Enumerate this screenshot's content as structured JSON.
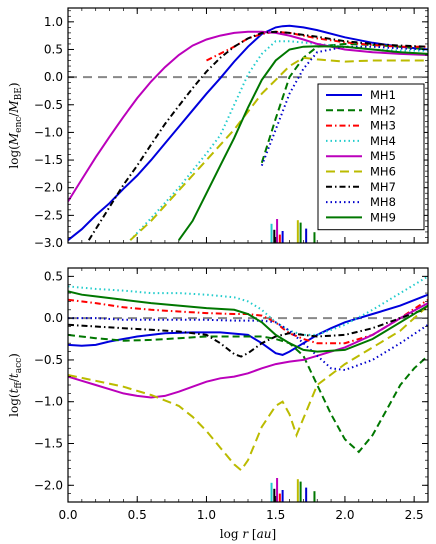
{
  "chart_data": [
    {
      "type": "line",
      "ylabel": "log(M_enc/M_BE)",
      "xlim": [
        0,
        2.6
      ],
      "ylim": [
        -3,
        1.25
      ],
      "yticks": [
        "1.0",
        "0.5",
        "0.0",
        "−0.5",
        "−1.0",
        "−1.5",
        "−2.0",
        "−2.5",
        "−3.0"
      ],
      "reference_line": 0.0,
      "legend_placement": "right",
      "series": [
        {
          "name": "MH1",
          "color": "#0000dd",
          "dash": "",
          "x": [
            0.0,
            0.1,
            0.2,
            0.3,
            0.4,
            0.5,
            0.6,
            0.7,
            0.8,
            0.9,
            1.0,
            1.1,
            1.2,
            1.3,
            1.4,
            1.5,
            1.55,
            1.6,
            1.7,
            1.8,
            2.0,
            2.2,
            2.4,
            2.6
          ],
          "y": [
            -2.95,
            -2.75,
            -2.5,
            -2.28,
            -2.02,
            -1.78,
            -1.5,
            -1.2,
            -0.9,
            -0.6,
            -0.3,
            -0.02,
            0.28,
            0.55,
            0.78,
            0.9,
            0.92,
            0.93,
            0.9,
            0.85,
            0.72,
            0.62,
            0.55,
            0.5
          ]
        },
        {
          "name": "MH2",
          "color": "#007700",
          "dash": "7,4",
          "x": [
            1.4,
            1.5,
            1.6,
            1.7,
            1.8,
            2.0,
            2.2,
            2.4,
            2.6
          ],
          "y": [
            -1.55,
            -0.75,
            0.0,
            0.35,
            0.55,
            0.6,
            0.58,
            0.55,
            0.5
          ]
        },
        {
          "name": "MH3",
          "color": "#ff0000",
          "dash": "6,3,1.5,3",
          "x": [
            1.0,
            1.2,
            1.3,
            1.4,
            1.5,
            1.6,
            1.7,
            1.8,
            2.0,
            2.2,
            2.4,
            2.6
          ],
          "y": [
            0.3,
            0.55,
            0.7,
            0.78,
            0.82,
            0.8,
            0.75,
            0.7,
            0.63,
            0.58,
            0.55,
            0.55
          ]
        },
        {
          "name": "MH4",
          "color": "#22cccc",
          "dash": "1.5,3",
          "x": [
            0.45,
            0.6,
            0.8,
            1.0,
            1.1,
            1.2,
            1.3,
            1.4,
            1.5,
            1.6,
            1.8,
            2.0,
            2.2,
            2.4,
            2.6
          ],
          "y": [
            -2.95,
            -2.55,
            -2.0,
            -1.38,
            -1.05,
            -0.5,
            0.05,
            0.42,
            0.65,
            0.65,
            0.6,
            0.55,
            0.5,
            0.48,
            0.48
          ]
        },
        {
          "name": "MH5",
          "color": "#bb00bb",
          "dash": "",
          "x": [
            0.0,
            0.1,
            0.2,
            0.3,
            0.4,
            0.5,
            0.6,
            0.7,
            0.8,
            0.9,
            1.0,
            1.1,
            1.2,
            1.3,
            1.4,
            1.5,
            1.6,
            1.7,
            1.8,
            2.0,
            2.2,
            2.4,
            2.6
          ],
          "y": [
            -2.25,
            -1.85,
            -1.45,
            -1.08,
            -0.72,
            -0.38,
            -0.08,
            0.18,
            0.4,
            0.57,
            0.68,
            0.75,
            0.8,
            0.82,
            0.82,
            0.8,
            0.75,
            0.68,
            0.6,
            0.5,
            0.45,
            0.42,
            0.4
          ]
        },
        {
          "name": "MH6",
          "color": "#bbbb00",
          "dash": "9,5",
          "x": [
            0.45,
            0.6,
            0.8,
            1.0,
            1.2,
            1.4,
            1.5,
            1.6,
            1.7,
            1.8,
            2.0,
            2.2,
            2.4,
            2.6
          ],
          "y": [
            -2.95,
            -2.6,
            -2.05,
            -1.5,
            -0.95,
            -0.3,
            -0.05,
            0.2,
            0.35,
            0.32,
            0.28,
            0.3,
            0.3,
            0.3
          ]
        },
        {
          "name": "MH7",
          "color": "#000000",
          "dash": "6,3,1.5,3",
          "x": [
            0.15,
            0.3,
            0.4,
            0.5,
            0.6,
            0.7,
            0.8,
            0.9,
            1.0,
            1.1,
            1.2,
            1.3,
            1.4,
            1.5,
            1.6,
            1.8,
            2.0,
            2.2,
            2.4,
            2.6
          ],
          "y": [
            -2.95,
            -2.35,
            -1.95,
            -1.6,
            -1.22,
            -0.85,
            -0.52,
            -0.2,
            0.1,
            0.35,
            0.55,
            0.7,
            0.8,
            0.82,
            0.8,
            0.73,
            0.65,
            0.6,
            0.57,
            0.55
          ]
        },
        {
          "name": "MH8",
          "color": "#0000cc",
          "dash": "1.5,3",
          "x": [
            1.4,
            1.5,
            1.6,
            1.7,
            1.8,
            2.0,
            2.2,
            2.4,
            2.6
          ],
          "y": [
            -1.6,
            -0.95,
            -0.3,
            0.15,
            0.45,
            0.55,
            0.55,
            0.52,
            0.5
          ]
        },
        {
          "name": "MH9",
          "color": "#007700",
          "dash": "",
          "x": [
            0.8,
            0.9,
            1.0,
            1.1,
            1.2,
            1.3,
            1.4,
            1.5,
            1.6,
            1.7,
            1.8,
            2.0,
            2.2,
            2.4,
            2.6
          ],
          "y": [
            -2.95,
            -2.6,
            -2.1,
            -1.6,
            -1.1,
            -0.55,
            -0.05,
            0.3,
            0.5,
            0.55,
            0.56,
            0.55,
            0.5,
            0.45,
            0.42
          ]
        }
      ]
    },
    {
      "type": "line",
      "xlabel": "log r [au]",
      "ylabel": "log(t_ff/t_acc)",
      "xlim": [
        0,
        2.6
      ],
      "ylim": [
        -2.2,
        0.6
      ],
      "yticks": [
        "0.5",
        "0.0",
        "−0.5",
        "−1.0",
        "−1.5",
        "−2.0"
      ],
      "xticks": [
        "0.0",
        "0.5",
        "1.0",
        "1.5",
        "2.0",
        "2.5"
      ],
      "reference_line": 0.0,
      "series": [
        {
          "name": "MH1",
          "color": "#0000dd",
          "dash": "",
          "x": [
            0.0,
            0.1,
            0.2,
            0.3,
            0.5,
            0.7,
            0.9,
            1.1,
            1.3,
            1.4,
            1.5,
            1.55,
            1.6,
            1.7,
            1.8,
            1.9,
            2.0,
            2.2,
            2.4,
            2.6
          ],
          "y": [
            -0.32,
            -0.33,
            -0.32,
            -0.28,
            -0.22,
            -0.18,
            -0.17,
            -0.17,
            -0.2,
            -0.3,
            -0.42,
            -0.44,
            -0.4,
            -0.3,
            -0.2,
            -0.12,
            -0.05,
            0.05,
            0.15,
            0.28
          ]
        },
        {
          "name": "MH2",
          "color": "#007700",
          "dash": "7,4",
          "x": [
            0.0,
            0.2,
            0.4,
            0.6,
            0.8,
            1.0,
            1.2,
            1.4,
            1.5,
            1.6,
            1.7,
            1.8,
            1.9,
            2.0,
            2.1,
            2.2,
            2.3,
            2.4,
            2.5,
            2.6
          ],
          "y": [
            -0.2,
            -0.24,
            -0.27,
            -0.26,
            -0.24,
            -0.22,
            -0.22,
            -0.22,
            -0.25,
            -0.3,
            -0.45,
            -0.8,
            -1.15,
            -1.45,
            -1.6,
            -1.4,
            -1.1,
            -0.8,
            -0.6,
            -0.45
          ]
        },
        {
          "name": "MH3",
          "color": "#ff0000",
          "dash": "6,3,1.5,3",
          "x": [
            0.0,
            0.2,
            0.4,
            0.6,
            0.8,
            1.0,
            1.2,
            1.3,
            1.4,
            1.5,
            1.55,
            1.6,
            1.7,
            1.8,
            2.0,
            2.2,
            2.4,
            2.6
          ],
          "y": [
            0.22,
            0.18,
            0.13,
            0.1,
            0.08,
            0.06,
            0.05,
            0.05,
            0.03,
            -0.05,
            -0.12,
            -0.18,
            -0.25,
            -0.3,
            -0.3,
            -0.2,
            0.0,
            0.22
          ]
        },
        {
          "name": "MH4",
          "color": "#22cccc",
          "dash": "1.5,3",
          "x": [
            0.0,
            0.2,
            0.4,
            0.6,
            0.8,
            1.0,
            1.2,
            1.3,
            1.4,
            1.5,
            1.6,
            1.7,
            1.8,
            2.0,
            2.2,
            2.4,
            2.6
          ],
          "y": [
            0.38,
            0.35,
            0.33,
            0.3,
            0.3,
            0.28,
            0.25,
            0.2,
            0.1,
            -0.05,
            -0.15,
            -0.2,
            -0.2,
            -0.08,
            0.1,
            0.3,
            0.5
          ]
        },
        {
          "name": "MH5",
          "color": "#bb00bb",
          "dash": "",
          "x": [
            0.0,
            0.1,
            0.2,
            0.3,
            0.4,
            0.5,
            0.6,
            0.7,
            0.8,
            0.9,
            1.0,
            1.1,
            1.2,
            1.3,
            1.4,
            1.5,
            1.6,
            1.7,
            1.8,
            1.9,
            2.0,
            2.2,
            2.4,
            2.6
          ],
          "y": [
            -0.7,
            -0.75,
            -0.8,
            -0.85,
            -0.9,
            -0.93,
            -0.95,
            -0.93,
            -0.88,
            -0.82,
            -0.76,
            -0.72,
            -0.7,
            -0.66,
            -0.6,
            -0.55,
            -0.52,
            -0.5,
            -0.45,
            -0.4,
            -0.35,
            -0.2,
            0.0,
            0.18
          ]
        },
        {
          "name": "MH6",
          "color": "#bbbb00",
          "dash": "9,5",
          "x": [
            0.0,
            0.2,
            0.4,
            0.6,
            0.8,
            0.9,
            1.0,
            1.1,
            1.2,
            1.25,
            1.3,
            1.4,
            1.5,
            1.55,
            1.6,
            1.65,
            1.7,
            1.8,
            2.0,
            2.2,
            2.4,
            2.6
          ],
          "y": [
            -0.68,
            -0.75,
            -0.82,
            -0.92,
            -1.05,
            -1.18,
            -1.35,
            -1.55,
            -1.75,
            -1.82,
            -1.7,
            -1.3,
            -1.05,
            -1.0,
            -1.15,
            -1.4,
            -1.2,
            -0.8,
            -0.55,
            -0.35,
            -0.15,
            0.15
          ]
        },
        {
          "name": "MH7",
          "color": "#000000",
          "dash": "6,3,1.5,3",
          "x": [
            0.0,
            0.2,
            0.4,
            0.6,
            0.8,
            1.0,
            1.1,
            1.2,
            1.25,
            1.3,
            1.4,
            1.5,
            1.6,
            1.7,
            1.8,
            2.0,
            2.2,
            2.4,
            2.6
          ],
          "y": [
            -0.08,
            -0.1,
            -0.12,
            -0.14,
            -0.16,
            -0.2,
            -0.3,
            -0.43,
            -0.46,
            -0.42,
            -0.3,
            -0.22,
            -0.18,
            -0.2,
            -0.22,
            -0.2,
            -0.12,
            0.0,
            0.12
          ]
        },
        {
          "name": "MH8",
          "color": "#0000cc",
          "dash": "1.5,3",
          "x": [
            0.0,
            0.2,
            0.4,
            0.6,
            0.8,
            1.0,
            1.2,
            1.4,
            1.5,
            1.6,
            1.7,
            1.8,
            1.9,
            2.0,
            2.2,
            2.4,
            2.6
          ],
          "y": [
            0.0,
            0.0,
            -0.02,
            -0.02,
            -0.02,
            -0.02,
            -0.03,
            -0.03,
            -0.05,
            -0.15,
            -0.3,
            -0.45,
            -0.6,
            -0.62,
            -0.5,
            -0.3,
            -0.08
          ]
        },
        {
          "name": "MH9",
          "color": "#007700",
          "dash": "",
          "x": [
            0.0,
            0.1,
            0.2,
            0.4,
            0.6,
            0.8,
            1.0,
            1.2,
            1.3,
            1.4,
            1.5,
            1.6,
            1.7,
            1.8,
            2.0,
            2.2,
            2.4,
            2.6
          ],
          "y": [
            0.32,
            0.28,
            0.26,
            0.22,
            0.18,
            0.15,
            0.12,
            0.1,
            0.05,
            -0.05,
            -0.2,
            -0.3,
            -0.38,
            -0.4,
            -0.38,
            -0.25,
            -0.05,
            0.15
          ]
        }
      ]
    }
  ],
  "ticks_markers": [
    {
      "x": 1.47,
      "color": "#22cccc",
      "h": 0.8
    },
    {
      "x": 1.49,
      "color": "#000000",
      "h": 0.55
    },
    {
      "x": 1.51,
      "color": "#bb00bb",
      "h": 1.0
    },
    {
      "x": 1.53,
      "color": "#ff0000",
      "h": 0.35
    },
    {
      "x": 1.55,
      "color": "#0000dd",
      "h": 0.5
    },
    {
      "x": 1.66,
      "color": "#bbbb00",
      "h": 0.95
    },
    {
      "x": 1.68,
      "color": "#007700",
      "h": 0.85
    },
    {
      "x": 1.72,
      "color": "#0000cc",
      "h": 0.6
    },
    {
      "x": 1.78,
      "color": "#007700",
      "h": 0.45
    }
  ]
}
